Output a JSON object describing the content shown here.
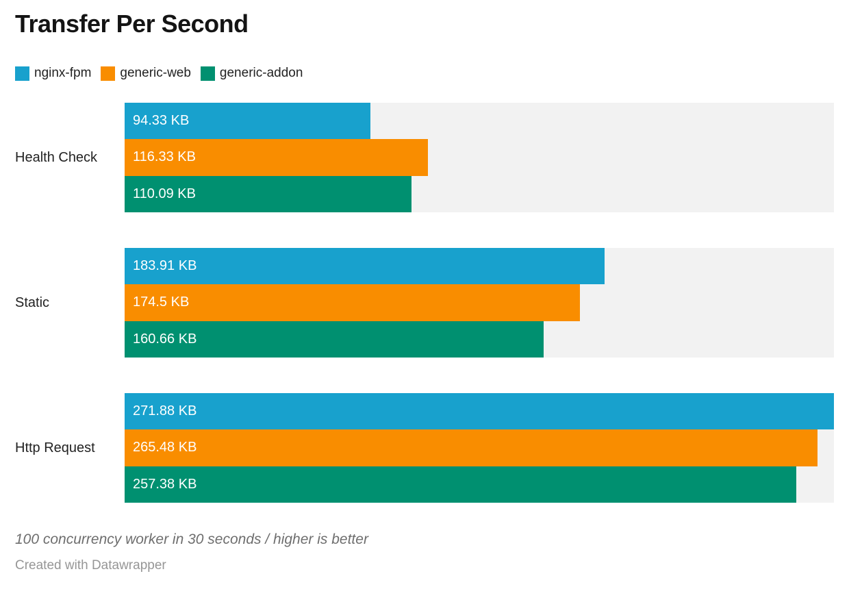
{
  "title": "Transfer Per Second",
  "legend": [
    {
      "label": "nginx-fpm",
      "color": "#18a1cd"
    },
    {
      "label": "generic-web",
      "color": "#f98d00"
    },
    {
      "label": "generic-addon",
      "color": "#009070"
    }
  ],
  "footer": {
    "note": "100 concurrency worker in 30 seconds / higher is better",
    "credit": "Created with Datawrapper"
  },
  "colors": {
    "track": "#f2f2f2",
    "title_text": "#141414",
    "label_text": "#222222",
    "bar_value_text": "#ffffff",
    "note_text": "#6e6e6e",
    "credit_text": "#969696"
  },
  "layout": {
    "group_tops": [
      150,
      362,
      574
    ],
    "group_height": 160,
    "bars_left": 182,
    "track_width": 1036
  },
  "chart_data": {
    "type": "bar",
    "orientation": "horizontal",
    "title": "Transfer Per Second",
    "unit": "KB",
    "xlim": [
      0,
      271.88
    ],
    "grid": false,
    "legend_position": "top-left",
    "categories": [
      "Health Check",
      "Static",
      "Http Request"
    ],
    "series": [
      {
        "name": "nginx-fpm",
        "color": "#18a1cd",
        "values": [
          94.33,
          183.91,
          271.88
        ],
        "labels": [
          "94.33 KB",
          "183.91 KB",
          "271.88 KB"
        ]
      },
      {
        "name": "generic-web",
        "color": "#f98d00",
        "values": [
          116.33,
          174.5,
          265.48
        ],
        "labels": [
          "116.33 KB",
          "174.5 KB",
          "265.48 KB"
        ]
      },
      {
        "name": "generic-addon",
        "color": "#009070",
        "values": [
          110.09,
          160.66,
          257.38
        ],
        "labels": [
          "110.09 KB",
          "160.66 KB",
          "257.38 KB"
        ]
      }
    ]
  }
}
